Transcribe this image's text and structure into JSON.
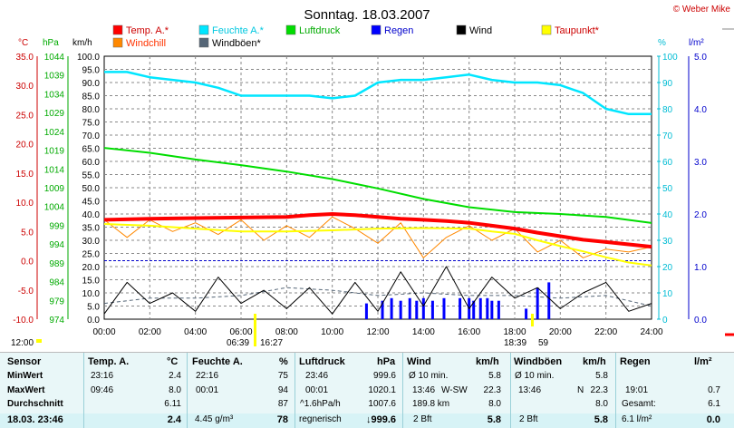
{
  "header": {
    "title": "Sonntag. 18.03.2007",
    "copyright": "© Weber Mike"
  },
  "legend": [
    {
      "label": "Temp. A.*",
      "color": "#ff0000"
    },
    {
      "label": "Feuchte A.*",
      "color": "#00e6ff"
    },
    {
      "label": "Luftdruck",
      "color": "#00dd00"
    },
    {
      "label": "Regen",
      "color": "#0000ff"
    },
    {
      "label": "Wind",
      "color": "#000000"
    },
    {
      "label": "Taupunkt*",
      "color": "#ffff00"
    },
    {
      "label": "Windchill",
      "color": "#ff8800"
    },
    {
      "label": "Windböen*",
      "color": "#556677"
    }
  ],
  "axes": {
    "temp_unit": "°C",
    "hpa_unit": "hPa",
    "kmh_unit": "km/h",
    "pct_unit": "%",
    "rain_unit": "l/m²",
    "temp_ticks": [
      "35.0",
      "30.0",
      "25.0",
      "20.0",
      "15.0",
      "10.0",
      "5.0",
      "0.0",
      "-5.0",
      "-10.0"
    ],
    "hpa_ticks": [
      "1044",
      "1039",
      "1034",
      "1029",
      "1024",
      "1019",
      "1014",
      "1009",
      "1004",
      "999",
      "994",
      "989",
      "984",
      "979",
      "974"
    ],
    "kmh_ticks": [
      "100.0",
      "95.0",
      "90.0",
      "85.0",
      "80.0",
      "75.0",
      "70.0",
      "65.0",
      "60.0",
      "55.0",
      "50.0",
      "45.0",
      "40.0",
      "35.0",
      "30.0",
      "25.0",
      "20.0",
      "15.0",
      "10.0",
      "5.0",
      "0.0"
    ],
    "pct_ticks": [
      "100",
      "90",
      "80",
      "70",
      "60",
      "50",
      "40",
      "30",
      "20",
      "10",
      "0"
    ],
    "rain_ticks": [
      "5.0",
      "4.0",
      "3.0",
      "2.0",
      "1.0",
      "0.0"
    ],
    "x_ticks": [
      "00:00",
      "02:00",
      "04:00",
      "06:00",
      "08:00",
      "10:00",
      "12:00",
      "14:00",
      "16:00",
      "18:00",
      "20:00",
      "22:00",
      "24:00"
    ],
    "sun_left": "12:00",
    "sunrise": "06:39",
    "sunrise_end": "16:27",
    "sunset": "18:39",
    "sunset_end": "59"
  },
  "chart_data": {
    "type": "line",
    "x_range": [
      0,
      24
    ],
    "x_unit": "hours",
    "series": [
      {
        "name": "Temp. A.*",
        "axis": "°C",
        "color": "#ff0000",
        "x": [
          0,
          2,
          4,
          6,
          8,
          9,
          10,
          11,
          12,
          13,
          14,
          15,
          16,
          17,
          18,
          19,
          20,
          21,
          22,
          23,
          24
        ],
        "y": [
          7.0,
          7.2,
          7.3,
          7.4,
          7.5,
          7.8,
          8.0,
          7.8,
          7.5,
          7.2,
          7.0,
          6.8,
          6.5,
          6.0,
          5.5,
          4.8,
          4.2,
          3.6,
          3.2,
          2.8,
          2.4
        ]
      },
      {
        "name": "Feuchte A.*",
        "axis": "%",
        "color": "#00e6ff",
        "x": [
          0,
          1,
          2,
          3,
          4,
          5,
          6,
          7,
          8,
          9,
          10,
          11,
          12,
          13,
          14,
          15,
          16,
          17,
          18,
          19,
          20,
          21,
          22,
          23,
          24
        ],
        "y": [
          94,
          94,
          92,
          91,
          90,
          88,
          85,
          85,
          85,
          85,
          84,
          85,
          90,
          91,
          91,
          92,
          93,
          91,
          90,
          90,
          89,
          86,
          80,
          78,
          78
        ]
      },
      {
        "name": "Luftdruck",
        "axis": "hPa",
        "color": "#00dd00",
        "x": [
          0,
          2,
          4,
          6,
          8,
          10,
          12,
          14,
          16,
          18,
          20,
          22,
          24
        ],
        "y": [
          1019.6,
          1018.3,
          1016.5,
          1015.0,
          1013.3,
          1011.3,
          1008.8,
          1006.0,
          1003.8,
          1002.5,
          1002.0,
          1001.2,
          999.6
        ]
      },
      {
        "name": "Taupunkt*",
        "axis": "°C",
        "color": "#ffff00",
        "x": [
          0,
          2,
          4,
          6,
          8,
          10,
          12,
          14,
          16,
          17,
          18,
          19,
          20,
          21,
          22,
          23,
          24
        ],
        "y": [
          6.3,
          6.0,
          5.5,
          5.0,
          5.0,
          5.2,
          5.5,
          5.6,
          5.5,
          5.0,
          4.6,
          3.5,
          2.5,
          1.6,
          0.6,
          -0.3,
          -0.8
        ]
      },
      {
        "name": "Windchill",
        "axis": "°C",
        "color": "#ff8800",
        "x": [
          0,
          1,
          2,
          3,
          4,
          5,
          6,
          7,
          8,
          9,
          10,
          11,
          12,
          13,
          14,
          15,
          16,
          17,
          18,
          19,
          20,
          21,
          22,
          23,
          24
        ],
        "y": [
          7.0,
          4.0,
          7.0,
          5.0,
          6.5,
          4.5,
          7.0,
          3.5,
          6.0,
          4.0,
          7.5,
          5.5,
          3.0,
          6.5,
          0.5,
          4.0,
          6.0,
          3.5,
          5.5,
          1.5,
          3.5,
          0.5,
          2.0,
          1.5,
          2.4
        ]
      },
      {
        "name": "Wind",
        "axis": "km/h",
        "color": "#000000",
        "x": [
          0,
          1,
          2,
          3,
          4,
          5,
          6,
          7,
          8,
          9,
          10,
          11,
          12,
          13,
          14,
          15,
          16,
          17,
          18,
          19,
          20,
          21,
          22,
          23,
          24
        ],
        "y": [
          2,
          14,
          6,
          10,
          3,
          16,
          6,
          11,
          4,
          12,
          2,
          14,
          3,
          18,
          5,
          20,
          4,
          16,
          8,
          12,
          4,
          10,
          14,
          3,
          6
        ]
      },
      {
        "name": "Windböen*",
        "axis": "km/h",
        "color": "#556677",
        "x": [
          0,
          2,
          4,
          6,
          8,
          10,
          12,
          14,
          16,
          18,
          20,
          22,
          24
        ],
        "y": [
          6,
          8,
          8,
          9,
          12,
          11,
          9,
          10,
          9,
          9,
          8,
          9,
          5
        ]
      },
      {
        "name": "Regen",
        "axis": "l/m²",
        "color": "#0000ff",
        "type": "bar",
        "x": [
          11.5,
          12.2,
          12.6,
          13.0,
          13.4,
          13.7,
          14.0,
          14.4,
          14.9,
          15.6,
          16.0,
          16.2,
          16.5,
          16.8,
          17.0,
          17.3,
          18.5,
          19.0,
          19.5
        ],
        "y": [
          0.3,
          0.35,
          0.4,
          0.35,
          0.4,
          0.35,
          0.4,
          0.35,
          0.4,
          0.4,
          0.4,
          0.35,
          0.4,
          0.4,
          0.35,
          0.35,
          0.2,
          0.6,
          0.7
        ]
      }
    ]
  },
  "table": {
    "cols": [
      {
        "header": "Sensor"
      },
      {
        "header": "Temp. A.",
        "unit": "°C"
      },
      {
        "header": "Feuchte A.",
        "unit": "%"
      },
      {
        "header": "Luftdruck",
        "unit": "hPa"
      },
      {
        "header": "Wind",
        "unit": "km/h"
      },
      {
        "header": "Windböen",
        "unit": "km/h"
      },
      {
        "header": "Regen",
        "unit": "l/m²"
      }
    ],
    "rows": {
      "min": {
        "label": "MinWert",
        "temp_time": "23:16",
        "temp": "2.4",
        "hum_time": "22:16",
        "hum": "75",
        "pres_time": "23:46",
        "pres": "999.6",
        "wind_label": "Ø 10 min.",
        "wind": "5.8",
        "gust_label": "Ø 10 min.",
        "gust": "5.8",
        "rain_label": "",
        "rain": ""
      },
      "max": {
        "label": "MaxWert",
        "temp_time": "09:46",
        "temp": "8.0",
        "hum_time": "00:01",
        "hum": "94",
        "pres_time": "00:01",
        "pres": "1020.1",
        "wind_time": "13:46",
        "wind_dir": "W-SW",
        "wind": "22.3",
        "gust_time": "13:46",
        "gust_dir": "N",
        "gust": "22.3",
        "rain_time": "19:01",
        "rain": "0.7"
      },
      "avg": {
        "label": "Durchschnitt",
        "temp": "6.11",
        "hum": "87",
        "pres_trend": "^1.6hPa/h",
        "pres": "1007.6",
        "wind_dist": "189.8 km",
        "wind": "8.0",
        "gust": "8.0",
        "rain_label": "Gesamt:",
        "rain": "6.1"
      },
      "cur": {
        "label": "18.03. 23:46",
        "temp": "2.4",
        "hum_abs": "4.45 g/m³",
        "hum": "78",
        "pres_word": "regnerisch",
        "pres": "↓999.6",
        "wind_bft": "2 Bft",
        "wind": "5.8",
        "gust_bft": "2 Bft",
        "gust": "5.8",
        "rain_day": "6.1 l/m²",
        "rain": "0.0"
      }
    }
  }
}
